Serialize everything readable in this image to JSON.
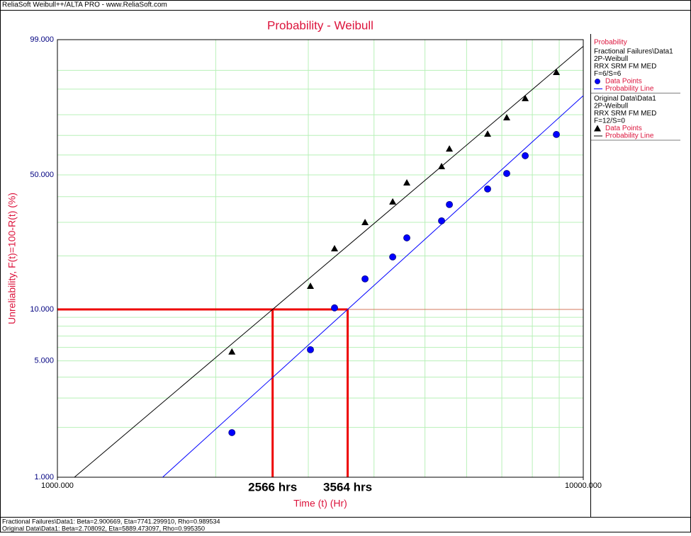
{
  "header": "ReliaSoft Weibull++/ALTA PRO - www.ReliaSoft.com",
  "chart_data": {
    "type": "weibull_probability",
    "title": "Probability - Weibull",
    "x_label": "Time (t) (Hr)",
    "y_label": "Unreliability, F(t)=100-R(t) (%)",
    "x_scale": "log",
    "xlim": [
      1000,
      10000
    ],
    "xticks": [
      {
        "value": 1000,
        "label": "1000.000"
      },
      {
        "value": 10000,
        "label": "10000.000"
      }
    ],
    "x_minor_grid": [
      2000,
      3000,
      4000,
      5000,
      6000,
      7000,
      8000,
      9000
    ],
    "ylim": [
      1,
      99
    ],
    "yticks": [
      {
        "value": 99,
        "label": "99.000"
      },
      {
        "value": 50,
        "label": "50.000"
      },
      {
        "value": 10,
        "label": "10.000"
      },
      {
        "value": 5,
        "label": "5.000"
      },
      {
        "value": 1,
        "label": "1.000"
      }
    ],
    "y_minor_grid": [
      2,
      3,
      4,
      6,
      7,
      8,
      9,
      20,
      30,
      40,
      60,
      70,
      80,
      90,
      95
    ],
    "grid_color": "#b8f0b8",
    "legend_title": "Probability",
    "series": [
      {
        "name": "Fractional Failures\\Data1",
        "details": [
          "2P-Weibull",
          "RRX SRM FM MED",
          "F=6/S=6"
        ],
        "points_label": "Data Points",
        "line_label": "Probability Line",
        "marker": "circle",
        "color": "#0000ff",
        "beta": 2.900669,
        "eta": 7741.29991,
        "x": [
          2147,
          3028,
          3365,
          3846,
          4341,
          4618,
          5377,
          5564,
          6578,
          7152,
          7755,
          8889
        ],
        "values": [
          1.86,
          5.82,
          10.21,
          14.92,
          19.72,
          24.95,
          30.53,
          36.72,
          43.4,
          50.7,
          59.6,
          70.5
        ]
      },
      {
        "name": "Original Data\\Data1",
        "details": [
          "2P-Weibull",
          "RRX SRM FM MED",
          "F=12/S=0"
        ],
        "points_label": "Data Points",
        "line_label": "Probability Line",
        "marker": "triangle",
        "color": "#000000",
        "beta": 2.708092,
        "eta": 5889.473097,
        "x": [
          2147,
          3028,
          3365,
          3846,
          4341,
          4618,
          5377,
          5564,
          6578,
          7152,
          7755,
          8889
        ],
        "values": [
          5.66,
          13.6,
          21.9,
          30.0,
          37.9,
          46.3,
          54.2,
          63.2,
          70.8,
          78.7,
          86.8,
          94.6
        ]
      }
    ],
    "annotations": [
      {
        "label": "2566 hrs",
        "x": 2566,
        "y": 10
      },
      {
        "label": "3564 hrs",
        "x": 3564,
        "y": 10
      }
    ],
    "annotation_color": "#ee0000"
  },
  "footer": [
    "Fractional Failures\\Data1: Beta=2.900669, Eta=7741.299910, Rho=0.989534",
    "Original Data\\Data1: Beta=2.708092, Eta=5889.473097, Rho=0.995350"
  ]
}
